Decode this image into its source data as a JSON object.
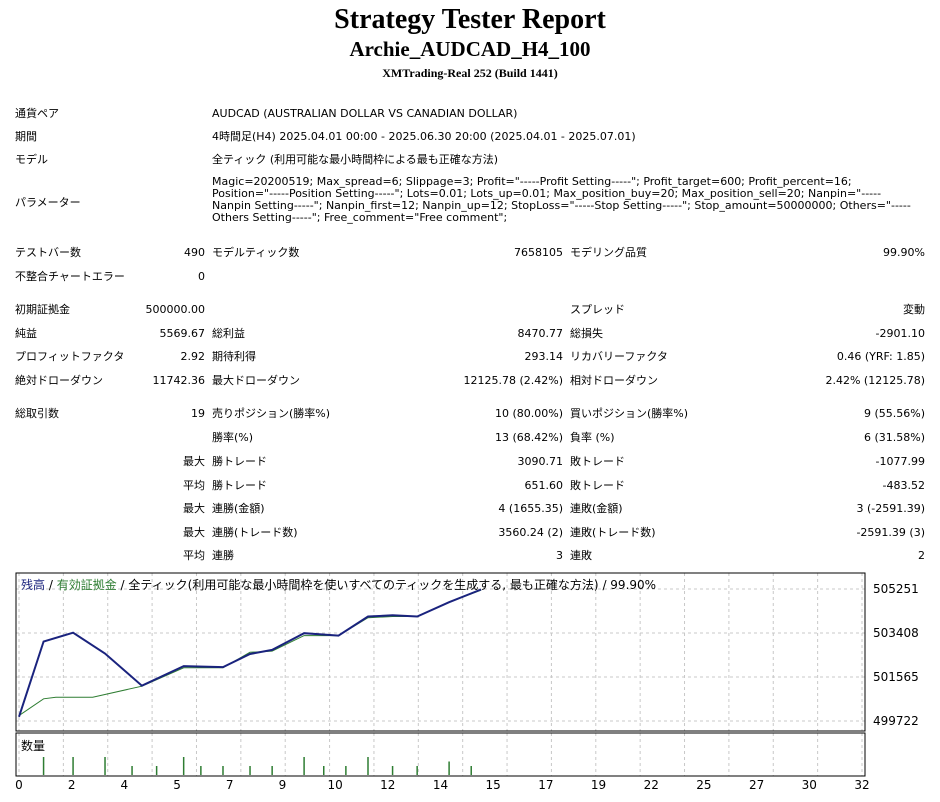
{
  "header": {
    "title": "Strategy Tester Report",
    "subtitle": "Archie_AUDCAD_H4_100",
    "broker": "XMTrading-Real 252 (Build 1441)"
  },
  "info": {
    "symbol_label": "通貨ペア",
    "symbol_value": "AUDCAD (AUSTRALIAN DOLLAR VS CANADIAN DOLLAR)",
    "period_label": "期間",
    "period_value": "4時間足(H4) 2025.04.01 00:00 - 2025.06.30 20:00 (2025.04.01 - 2025.07.01)",
    "model_label": "モデル",
    "model_value": "全ティック (利用可能な最小時間枠による最も正確な方法)",
    "params_label": "パラメーター",
    "params_value": "Magic=20200519; Max_spread=6; Slippage=3; Profit=\"-----Profit Setting-----\"; Profit_target=600; Profit_percent=16; Position=\"-----Position Setting-----\"; Lots=0.01; Lots_up=0.01; Max_position_buy=20; Max_position_sell=20; Nanpin=\"-----Nanpin Setting-----\"; Nanpin_first=12; Nanpin_up=12; StopLoss=\"-----Stop Setting-----\"; Stop_amount=50000000; Others=\"-----Others Setting-----\"; Free_comment=\"Free comment\";"
  },
  "stats": {
    "bars_label": "テストバー数",
    "bars_value": "490",
    "ticks_label": "モデルティック数",
    "ticks_value": "7658105",
    "quality_label": "モデリング品質",
    "quality_value": "99.90%",
    "mismatch_label": "不整合チャートエラー",
    "mismatch_value": "0",
    "deposit_label": "初期証拠金",
    "deposit_value": "500000.00",
    "spread_label": "スプレッド",
    "spread_value": "変動",
    "net_label": "純益",
    "net_value": "5569.67",
    "gross_profit_label": "総利益",
    "gross_profit_value": "8470.77",
    "gross_loss_label": "総損失",
    "gross_loss_value": "-2901.10",
    "pf_label": "プロフィットファクタ",
    "pf_value": "2.92",
    "expected_label": "期待利得",
    "expected_value": "293.14",
    "recovery_label": "リカバリーファクタ",
    "recovery_value": "0.46 (YRF: 1.85)",
    "abs_dd_label": "絶対ドローダウン",
    "abs_dd_value": "11742.36",
    "max_dd_label": "最大ドローダウン",
    "max_dd_value": "12125.78 (2.42%)",
    "rel_dd_label": "相対ドローダウン",
    "rel_dd_value": "2.42% (12125.78)",
    "trades_label": "総取引数",
    "trades_value": "19",
    "short_label": "売りポジション(勝率%)",
    "short_value": "10 (80.00%)",
    "long_label": "買いポジション(勝率%)",
    "long_value": "9 (55.56%)",
    "win_rate_label": "勝率(%)",
    "win_rate_value": "13 (68.42%)",
    "loss_rate_label": "負率 (%)",
    "loss_rate_value": "6 (31.58%)",
    "max1": "最大",
    "largest_win_label": "勝トレード",
    "largest_win_value": "3090.71",
    "largest_loss_label": "敗トレード",
    "largest_loss_value": "-1077.99",
    "avg1": "平均",
    "avg_win_label": "勝トレード",
    "avg_win_value": "651.60",
    "avg_loss_label": "敗トレード",
    "avg_loss_value": "-483.52",
    "max2": "最大",
    "max_cons_win_label": "連勝(金額)",
    "max_cons_win_value": "4 (1655.35)",
    "max_cons_loss_label": "連敗(金額)",
    "max_cons_loss_value": "3 (-2591.39)",
    "max3": "最大",
    "max_cons_profit_label": "連勝(トレード数)",
    "max_cons_profit_value": "3560.24 (2)",
    "max_cons_lossamt_label": "連敗(トレード数)",
    "max_cons_lossamt_value": "-2591.39 (3)",
    "avg2": "平均",
    "avg_cons_win_label": "連勝",
    "avg_cons_win_value": "3",
    "avg_cons_loss_label": "連敗",
    "avg_cons_loss_value": "2"
  },
  "chart_data": {
    "type": "line",
    "legend": {
      "balance": "残高",
      "sep1": " / ",
      "equity": "有効証拠金",
      "sep2": " / ",
      "method": "全ティック(利用可能な最小時間枠を使いすべてのティックを生成する, 最も正確な方法)",
      "sep3": " / ",
      "quality": "99.90%"
    },
    "y_ticks": [
      "505251",
      "503408",
      "501565",
      "499722"
    ],
    "ylim": [
      499722,
      505251
    ],
    "x_ticks": [
      "0",
      "2",
      "4",
      "5",
      "7",
      "9",
      "10",
      "12",
      "14",
      "15",
      "17",
      "19",
      "22",
      "25",
      "27",
      "30",
      "32"
    ],
    "volume_label": "数量",
    "series": [
      {
        "name": "残高",
        "color": "#1a237e",
        "x": [
          0,
          1,
          2.2,
          3.5,
          5,
          6.7,
          8.3,
          9.4,
          10.3,
          11.6,
          13,
          14.2,
          15.2,
          16.2,
          17.5,
          18.8
        ],
        "y": [
          499900,
          503050,
          503420,
          502550,
          501200,
          502020,
          501980,
          502530,
          502700,
          503400,
          503300,
          504100,
          504150,
          504100,
          504700,
          505230
        ]
      },
      {
        "name": "有効証拠金",
        "color": "#2e7d32",
        "x": [
          0,
          1,
          1.5,
          3,
          5,
          6.7,
          8.3,
          9.4,
          10.3,
          11.6,
          13,
          14.2,
          15.2,
          16.2,
          17.5,
          18.8
        ],
        "y": [
          499950,
          500650,
          500720,
          500720,
          501180,
          501950,
          501950,
          502600,
          502650,
          503300,
          503300,
          504050,
          504100,
          504100,
          504700,
          505200
        ]
      }
    ],
    "volume": {
      "color": "#2e7d32",
      "x": [
        1,
        2.2,
        3.5,
        4.6,
        5.6,
        6.7,
        7.4,
        8.3,
        9.4,
        10.3,
        11.6,
        12.4,
        13.3,
        14.2,
        15.2,
        16.2,
        17.5,
        18.4
      ],
      "v": [
        4,
        4,
        4,
        2,
        2,
        4,
        2,
        2,
        2,
        2,
        4,
        2,
        2,
        4,
        2,
        2,
        3,
        2
      ]
    }
  }
}
